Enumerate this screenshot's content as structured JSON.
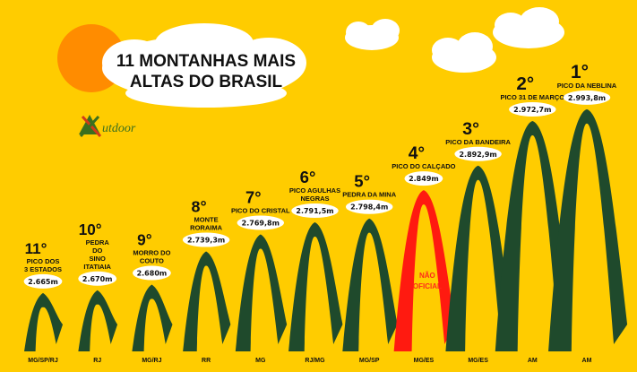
{
  "title": {
    "line1": "11 MONTANHAS MAIS",
    "line2": "ALTAS DO BRASIL"
  },
  "logo": {
    "text": "utdoor",
    "icon": "mountain-x-logo-icon"
  },
  "colors": {
    "background": "#ffcc00",
    "mountain": "#1f4a2c",
    "unofficial": "#ff1a10",
    "sun": "#ff8c00",
    "cloud": "#ffffff"
  },
  "chart_data": {
    "type": "bar",
    "title": "11 MONTANHAS MAIS ALTAS DO BRASIL",
    "unit": "m",
    "mountains": [
      {
        "rank": "11°",
        "name": [
          "PICO DOS",
          "3 ESTADOS"
        ],
        "altitude": "2.665m",
        "value": 2665,
        "state": "MG/SP/RJ",
        "official": true
      },
      {
        "rank": "10°",
        "name": [
          "PEDRA",
          "DO",
          "SINO",
          "ITATIAIA"
        ],
        "altitude": "2.670m",
        "value": 2670,
        "state": "RJ",
        "official": true
      },
      {
        "rank": "9°",
        "name": [
          "MORRO DO",
          "COUTO"
        ],
        "altitude": "2.680m",
        "value": 2680,
        "state": "MG/RJ",
        "official": true
      },
      {
        "rank": "8°",
        "name": [
          "MONTE",
          "RORAIMA"
        ],
        "altitude": "2.739,3m",
        "value": 2739.3,
        "state": "RR",
        "official": true
      },
      {
        "rank": "7°",
        "name": [
          "PICO DO CRISTAL"
        ],
        "altitude": "2.769,8m",
        "value": 2769.8,
        "state": "MG",
        "official": true
      },
      {
        "rank": "6°",
        "name": [
          "PICO AGULHAS",
          "NEGRAS"
        ],
        "altitude": "2.791,5m",
        "value": 2791.5,
        "state": "RJ/MG",
        "official": true
      },
      {
        "rank": "5°",
        "name": [
          "PEDRA DA MINA"
        ],
        "altitude": "2.798,4m",
        "value": 2798.4,
        "state": "MG/SP",
        "official": true
      },
      {
        "rank": "4°",
        "name": [
          "PICO DO CALÇADO"
        ],
        "altitude": "2.849m",
        "value": 2849,
        "state": "MG/ES",
        "official": false,
        "note": [
          "NÃO",
          "OFICIAL"
        ]
      },
      {
        "rank": "3°",
        "name": [
          "PICO DA BANDEIRA"
        ],
        "altitude": "2.892,9m",
        "value": 2892.9,
        "state": "MG/ES",
        "official": true
      },
      {
        "rank": "2°",
        "name": [
          "PICO 31 DE MARÇO"
        ],
        "altitude": "2.972,7m",
        "value": 2972.7,
        "state": "AM",
        "official": true
      },
      {
        "rank": "1°",
        "name": [
          "PICO DA NEBLINA"
        ],
        "altitude": "2.993,8m",
        "value": 2993.8,
        "state": "AM",
        "official": true
      }
    ]
  }
}
